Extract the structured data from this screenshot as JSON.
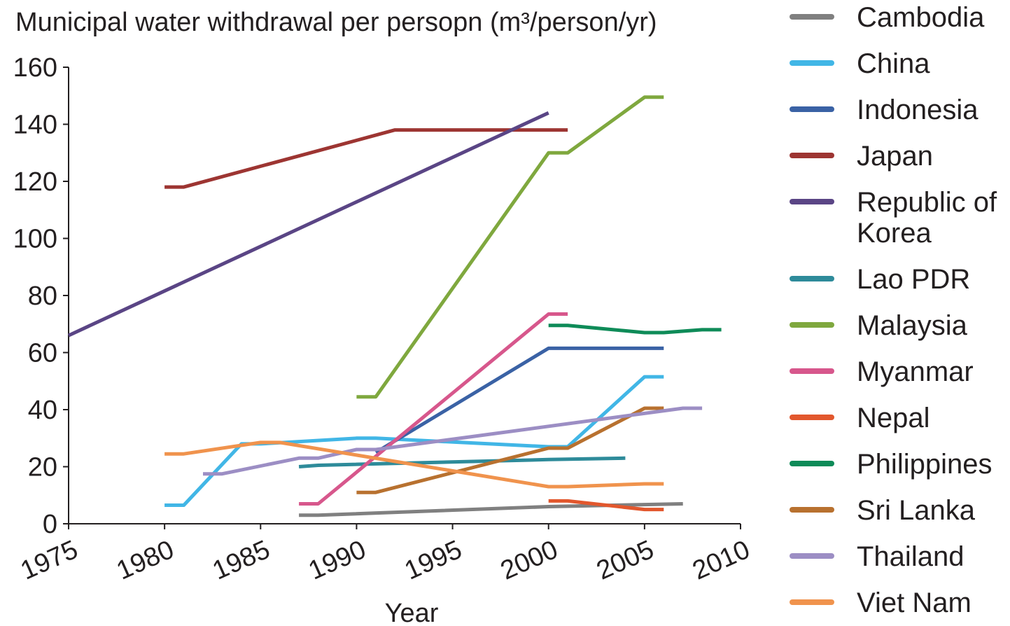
{
  "chart_data": {
    "type": "line",
    "title": "Municipal water withdrawal per persopn (m³/person/yr)",
    "xlabel": "Year",
    "ylabel": "",
    "xlim": [
      1975,
      2010
    ],
    "ylim": [
      0,
      160
    ],
    "x_ticks": [
      "1975",
      "1980",
      "1985",
      "1990",
      "1995",
      "2000",
      "2005",
      "2010"
    ],
    "y_ticks": [
      "0",
      "20",
      "40",
      "60",
      "80",
      "100",
      "120",
      "140",
      "160"
    ],
    "legend_position": "right",
    "series": [
      {
        "name": "Cambodia",
        "color": "#808080",
        "points": [
          [
            1987,
            3
          ],
          [
            1988,
            3
          ],
          [
            2000,
            6
          ],
          [
            2007,
            7
          ]
        ]
      },
      {
        "name": "China",
        "color": "#41b6e6",
        "points": [
          [
            1980,
            6.5
          ],
          [
            1981,
            6.5
          ],
          [
            1984,
            28
          ],
          [
            1985,
            28
          ],
          [
            1990,
            30
          ],
          [
            1991,
            30
          ],
          [
            2000,
            27
          ],
          [
            2001,
            27
          ],
          [
            2005,
            51.5
          ],
          [
            2006,
            51.5
          ]
        ]
      },
      {
        "name": "Indonesia",
        "color": "#3a62a5",
        "points": [
          [
            1991,
            25
          ],
          [
            2000,
            61.5
          ],
          [
            2006,
            61.5
          ]
        ]
      },
      {
        "name": "Japan",
        "color": "#9d3532",
        "points": [
          [
            1980,
            118
          ],
          [
            1981,
            118
          ],
          [
            1992,
            138
          ],
          [
            1993,
            138
          ],
          [
            2000,
            138
          ],
          [
            2001,
            138
          ]
        ]
      },
      {
        "name": "Republic of Korea",
        "color": "#5a4585",
        "points": [
          [
            1975,
            66
          ],
          [
            2000,
            144
          ]
        ]
      },
      {
        "name": "Lao PDR",
        "color": "#2e8b9a",
        "points": [
          [
            1987,
            20
          ],
          [
            1988,
            20.5
          ],
          [
            2000,
            22.5
          ],
          [
            2004,
            23
          ]
        ]
      },
      {
        "name": "Malaysia",
        "color": "#7fa83e",
        "points": [
          [
            1990,
            44.5
          ],
          [
            1991,
            44.5
          ],
          [
            2000,
            130
          ],
          [
            2001,
            130
          ],
          [
            2005,
            149.5
          ],
          [
            2006,
            149.5
          ]
        ]
      },
      {
        "name": "Myanmar",
        "color": "#d7578c",
        "points": [
          [
            1987,
            7
          ],
          [
            1988,
            7
          ],
          [
            2000,
            73.5
          ],
          [
            2001,
            73.5
          ]
        ]
      },
      {
        "name": "Nepal",
        "color": "#e2572d",
        "points": [
          [
            2000,
            8
          ],
          [
            2001,
            8
          ],
          [
            2005,
            5
          ],
          [
            2006,
            5
          ]
        ]
      },
      {
        "name": "Philippines",
        "color": "#0e8b58",
        "points": [
          [
            2000,
            69.5
          ],
          [
            2001,
            69.5
          ],
          [
            2005,
            67
          ],
          [
            2006,
            67
          ],
          [
            2008,
            68
          ],
          [
            2009,
            68
          ]
        ]
      },
      {
        "name": "Sri Lanka",
        "color": "#b8712f",
        "points": [
          [
            1990,
            11
          ],
          [
            1991,
            11
          ],
          [
            2000,
            26.5
          ],
          [
            2001,
            26.5
          ],
          [
            2005,
            40.5
          ],
          [
            2006,
            40.5
          ]
        ]
      },
      {
        "name": "Thailand",
        "color": "#9c8ec4",
        "points": [
          [
            1982,
            17.5
          ],
          [
            1983,
            17.5
          ],
          [
            1987,
            23
          ],
          [
            1988,
            23
          ],
          [
            1990,
            26
          ],
          [
            1991,
            26
          ],
          [
            2007,
            40.5
          ],
          [
            2008,
            40.5
          ]
        ]
      },
      {
        "name": "Viet Nam",
        "color": "#f0934d",
        "points": [
          [
            1980,
            24.5
          ],
          [
            1981,
            24.5
          ],
          [
            1985,
            28.5
          ],
          [
            1986,
            28.5
          ],
          [
            2000,
            13
          ],
          [
            2001,
            13
          ],
          [
            2005,
            14
          ],
          [
            2006,
            14
          ]
        ]
      }
    ]
  }
}
